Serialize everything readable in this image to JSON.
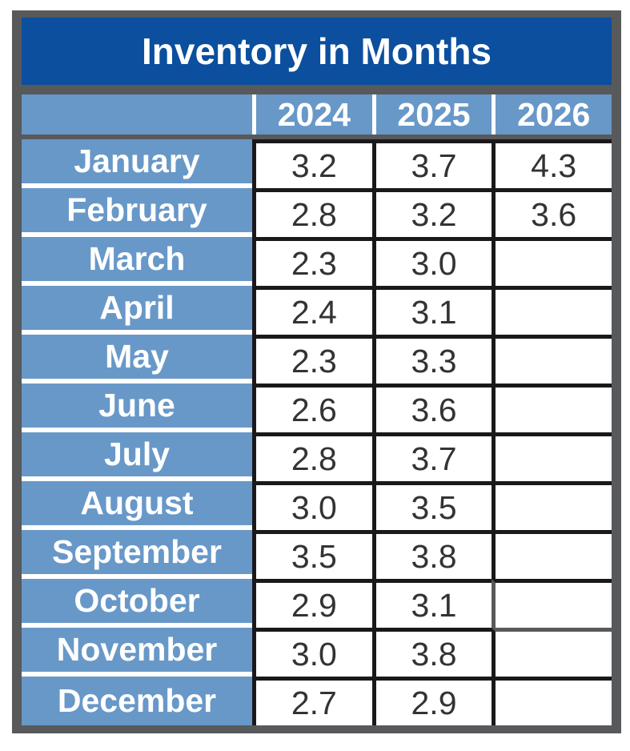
{
  "title": "Inventory in Months",
  "chart_data": {
    "type": "table",
    "title": "Inventory in Months",
    "columns": [
      "2024",
      "2025",
      "2026"
    ],
    "rows": [
      {
        "label": "January",
        "values": [
          3.2,
          3.7,
          4.3
        ]
      },
      {
        "label": "February",
        "values": [
          2.8,
          3.2,
          3.6
        ]
      },
      {
        "label": "March",
        "values": [
          2.3,
          3.0,
          null
        ]
      },
      {
        "label": "April",
        "values": [
          2.4,
          3.1,
          null
        ]
      },
      {
        "label": "May",
        "values": [
          2.3,
          3.3,
          null
        ]
      },
      {
        "label": "June",
        "values": [
          2.6,
          3.6,
          null
        ]
      },
      {
        "label": "July",
        "values": [
          2.8,
          3.7,
          null
        ]
      },
      {
        "label": "August",
        "values": [
          3.0,
          3.5,
          null
        ]
      },
      {
        "label": "September",
        "values": [
          3.5,
          3.8,
          null
        ]
      },
      {
        "label": "October",
        "values": [
          2.9,
          3.1,
          null
        ]
      },
      {
        "label": "November",
        "values": [
          3.0,
          3.8,
          null
        ]
      },
      {
        "label": "December",
        "values": [
          2.7,
          2.9,
          null
        ]
      }
    ],
    "value_format": "one-decimal",
    "units": "months of inventory"
  },
  "colors": {
    "frame": "#58595B",
    "title_bg": "#0B4F9E",
    "header_bg": "#6898C8",
    "grid": "#1B181C",
    "separator": "#FFFFFF",
    "value_text": "#333333",
    "light_text": "#FFFFFF"
  }
}
